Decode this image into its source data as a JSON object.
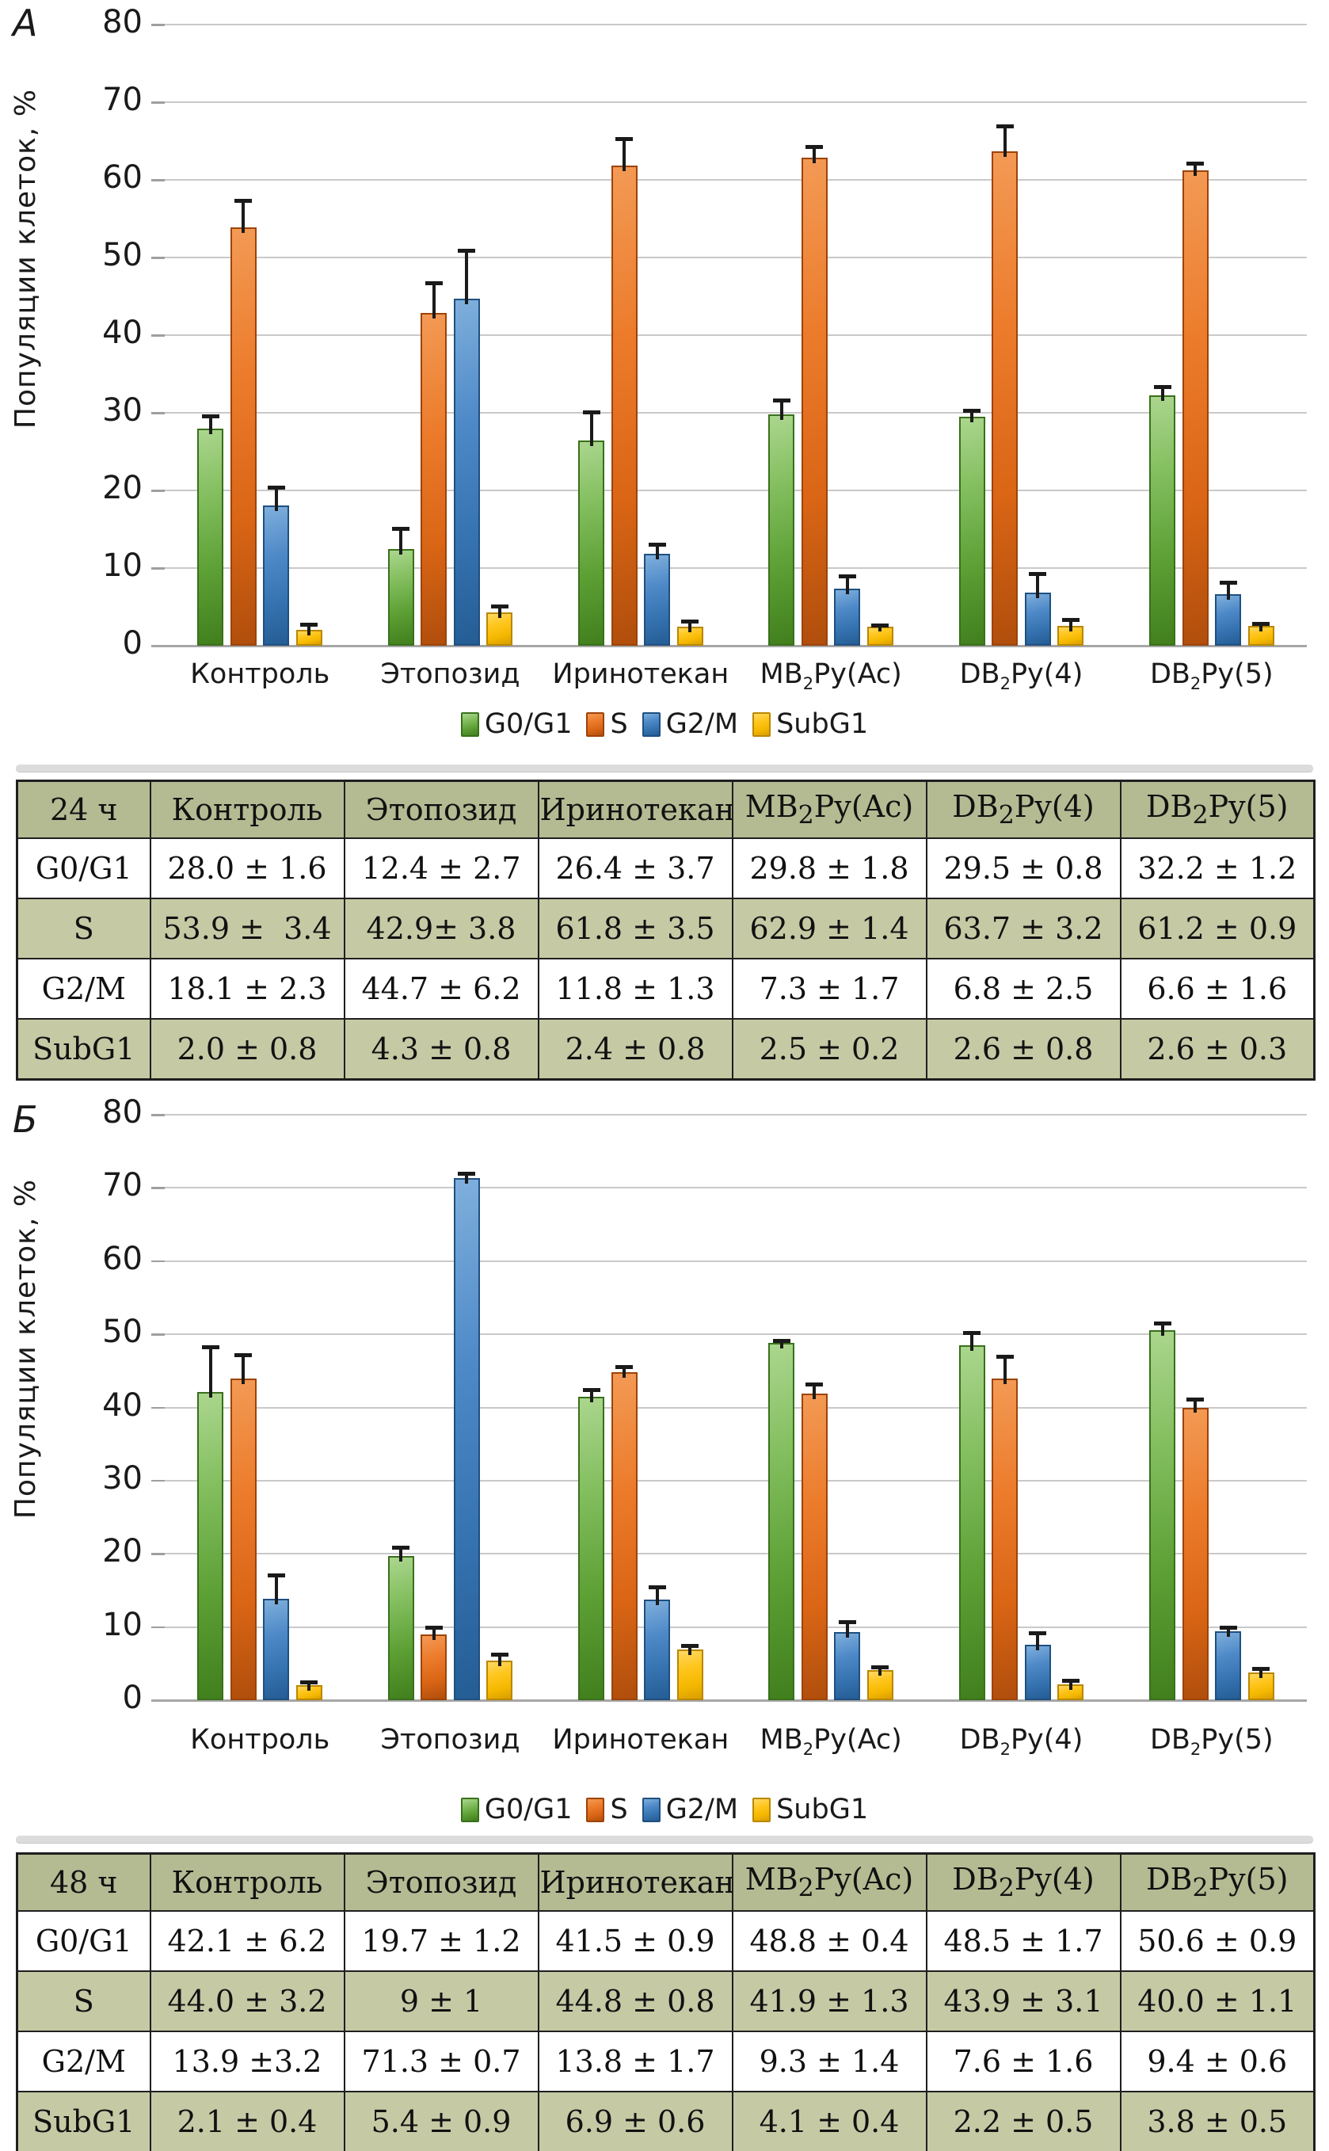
{
  "panels": [
    {
      "letter": "А"
    },
    {
      "letter": "Б"
    }
  ],
  "colors": {
    "green": "#5da035",
    "orange": "#e4701f",
    "blue": "#3572b0",
    "yellow": "#fdc00d",
    "table_header_bg": "#b4ba92",
    "table_stripe_bg": "#c5caa5",
    "gridline": "#c9c9c9",
    "axis_line": "#a6a6a6",
    "error_bar": "#1a1a1a",
    "separator": "#dcdcdc"
  },
  "categories_rich": [
    {
      "pre": "Контроль",
      "sub": "",
      "post": ""
    },
    {
      "pre": "Этопозид",
      "sub": "",
      "post": ""
    },
    {
      "pre": "Иринотекан",
      "sub": "",
      "post": ""
    },
    {
      "pre": "MB",
      "sub": "2",
      "post": "Py(Ac)"
    },
    {
      "pre": "DB",
      "sub": "2",
      "post": "Py(4)"
    },
    {
      "pre": "DB",
      "sub": "2",
      "post": "Py(5)"
    }
  ],
  "chart_data": [
    {
      "type": "bar",
      "panel": "А",
      "ylabel": "Популяции клеток, %",
      "ylim": [
        0,
        80
      ],
      "ytick_step": 10,
      "yticks": [
        0,
        10,
        20,
        30,
        40,
        50,
        60,
        70,
        80
      ],
      "grid": true,
      "legend_position": "bottom",
      "categories": [
        "Контроль",
        "Этопозид",
        "Иринотекан",
        "MB2Py(Ac)",
        "DB2Py(4)",
        "DB2Py(5)"
      ],
      "series": [
        {
          "name": "G0/G1",
          "key": "g0g1",
          "color_key": "green",
          "values": [
            28.0,
            12.4,
            26.4,
            29.8,
            29.5,
            32.2
          ],
          "errors": [
            1.6,
            2.7,
            3.7,
            1.8,
            0.8,
            1.2
          ]
        },
        {
          "name": "S",
          "key": "s",
          "color_key": "orange",
          "values": [
            53.9,
            42.9,
            61.8,
            62.9,
            63.7,
            61.2
          ],
          "errors": [
            3.4,
            3.8,
            3.5,
            1.4,
            3.2,
            0.9
          ]
        },
        {
          "name": "G2/M",
          "key": "g2m",
          "color_key": "blue",
          "values": [
            18.1,
            44.7,
            11.8,
            7.3,
            6.8,
            6.6
          ],
          "errors": [
            2.3,
            6.2,
            1.3,
            1.7,
            2.5,
            1.6
          ]
        },
        {
          "name": "SubG1",
          "key": "subg1",
          "color_key": "yellow",
          "values": [
            2.0,
            4.3,
            2.4,
            2.5,
            2.6,
            2.6
          ],
          "errors": [
            0.8,
            0.8,
            0.8,
            0.2,
            0.8,
            0.3
          ]
        }
      ]
    },
    {
      "type": "bar",
      "panel": "Б",
      "ylabel": "Популяции клеток, %",
      "ylim": [
        0,
        80
      ],
      "ytick_step": 10,
      "yticks": [
        0,
        10,
        20,
        30,
        40,
        50,
        60,
        70,
        80
      ],
      "grid": true,
      "legend_position": "bottom",
      "categories": [
        "Контроль",
        "Этопозид",
        "Иринотекан",
        "MB2Py(Ac)",
        "DB2Py(4)",
        "DB2Py(5)"
      ],
      "series": [
        {
          "name": "G0/G1",
          "key": "g0g1",
          "color_key": "green",
          "values": [
            42.1,
            19.7,
            41.5,
            48.8,
            48.5,
            50.6
          ],
          "errors": [
            6.2,
            1.2,
            0.9,
            0.4,
            1.7,
            0.9
          ]
        },
        {
          "name": "S",
          "key": "s",
          "color_key": "orange",
          "values": [
            44.0,
            9.0,
            44.8,
            41.9,
            43.9,
            40.0
          ],
          "errors": [
            3.2,
            1.0,
            0.8,
            1.3,
            3.1,
            1.1
          ]
        },
        {
          "name": "G2/M",
          "key": "g2m",
          "color_key": "blue",
          "values": [
            13.9,
            71.3,
            13.8,
            9.3,
            7.6,
            9.4
          ],
          "errors": [
            3.2,
            0.7,
            1.7,
            1.4,
            1.6,
            0.6
          ]
        },
        {
          "name": "SubG1",
          "key": "subg1",
          "color_key": "yellow",
          "values": [
            2.1,
            5.4,
            6.9,
            4.1,
            2.2,
            3.8
          ],
          "errors": [
            0.4,
            0.9,
            0.6,
            0.4,
            0.5,
            0.5
          ]
        }
      ]
    }
  ],
  "tables": [
    {
      "corner": "24 ч",
      "rows": [
        {
          "label": "G0/G1",
          "values": [
            "28.0 ± 1.6",
            "12.4 ± 2.7",
            "26.4 ± 3.7",
            "29.8 ± 1.8",
            "29.5 ± 0.8",
            "32.2 ± 1.2"
          ]
        },
        {
          "label": "S",
          "values": [
            "53.9 ±  3.4",
            "42.9± 3.8",
            "61.8 ± 3.5",
            "62.9 ± 1.4",
            "63.7 ± 3.2",
            "61.2 ± 0.9"
          ]
        },
        {
          "label": "G2/M",
          "values": [
            "18.1 ± 2.3",
            "44.7 ± 6.2",
            "11.8 ± 1.3",
            "7.3 ± 1.7",
            "6.8 ± 2.5",
            "6.6 ± 1.6"
          ]
        },
        {
          "label": "SubG1",
          "values": [
            "2.0 ± 0.8",
            "4.3 ± 0.8",
            "2.4 ± 0.8",
            "2.5 ± 0.2",
            "2.6 ± 0.8",
            "2.6 ± 0.3"
          ]
        }
      ]
    },
    {
      "corner": "48 ч",
      "rows": [
        {
          "label": "G0/G1",
          "values": [
            "42.1 ± 6.2",
            "19.7 ± 1.2",
            "41.5 ± 0.9",
            "48.8 ± 0.4",
            "48.5 ± 1.7",
            "50.6 ± 0.9"
          ]
        },
        {
          "label": "S",
          "values": [
            "44.0 ± 3.2",
            "9 ± 1",
            "44.8 ± 0.8",
            "41.9 ± 1.3",
            "43.9 ± 3.1",
            "40.0 ± 1.1"
          ]
        },
        {
          "label": "G2/M",
          "values": [
            "13.9 ±3.2",
            "71.3 ± 0.7",
            "13.8 ± 1.7",
            "9.3 ± 1.4",
            "7.6 ± 1.6",
            "9.4 ± 0.6"
          ]
        },
        {
          "label": "SubG1",
          "values": [
            "2.1 ± 0.4",
            "5.4 ± 0.9",
            "6.9 ± 0.6",
            "4.1 ± 0.4",
            "2.2 ± 0.5",
            "3.8 ± 0.5"
          ]
        }
      ]
    }
  ]
}
